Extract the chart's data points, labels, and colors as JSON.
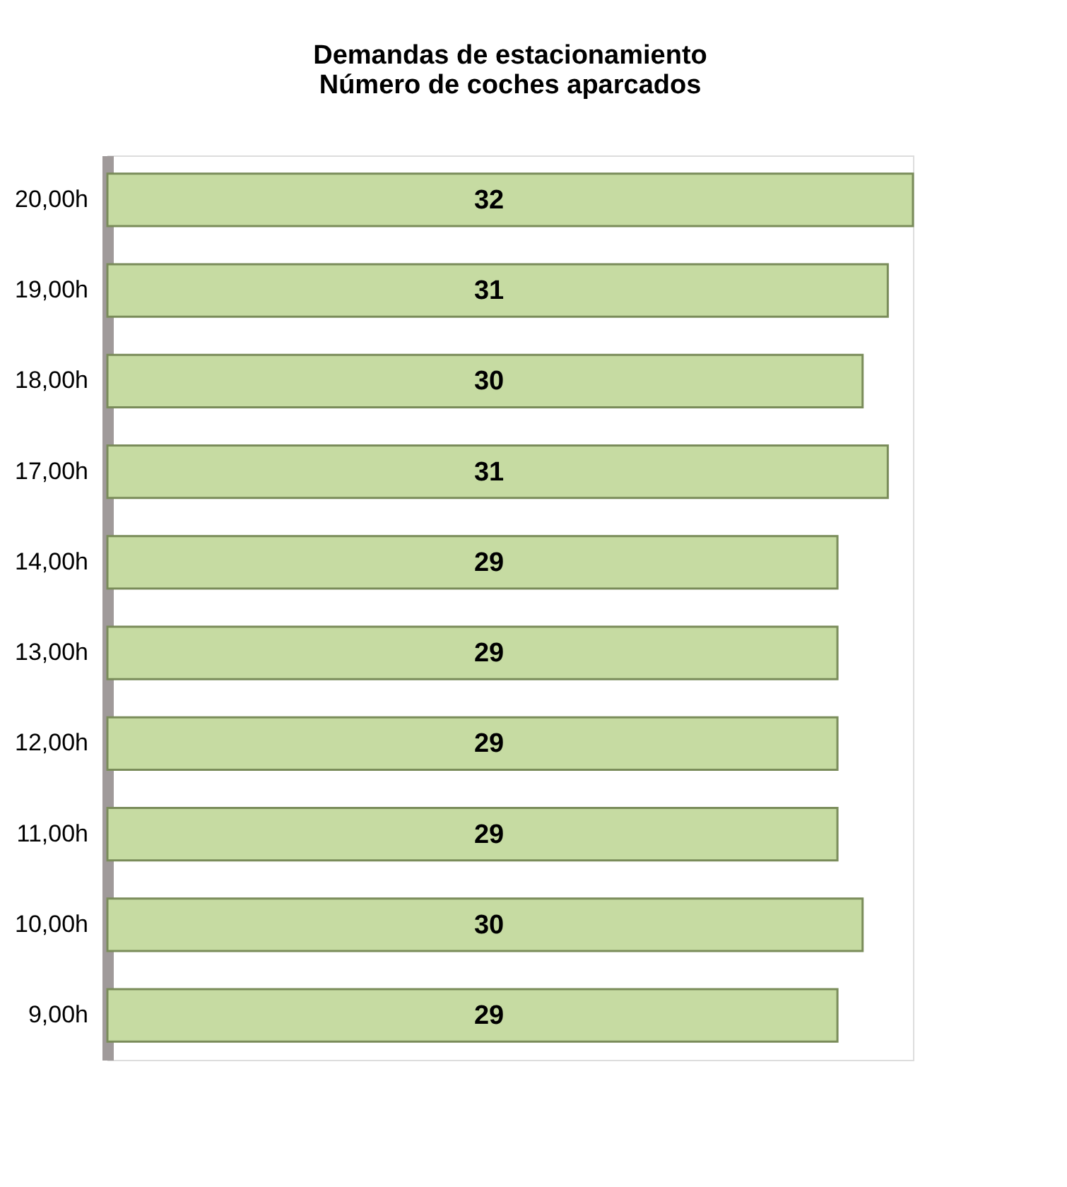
{
  "chart_data": {
    "type": "bar",
    "orientation": "horizontal",
    "title": [
      "Demandas de estacionamiento",
      "Número de coches aparcados"
    ],
    "categories": [
      "20,00h",
      "19,00h",
      "18,00h",
      "17,00h",
      "14,00h",
      "13,00h",
      "12,00h",
      "11,00h",
      "10,00h",
      "9,00h"
    ],
    "values": [
      32,
      31,
      30,
      31,
      29,
      29,
      29,
      29,
      30,
      29
    ],
    "color": "#c6dba2",
    "data_labels": true,
    "grid": false,
    "tick_labels": "y"
  }
}
